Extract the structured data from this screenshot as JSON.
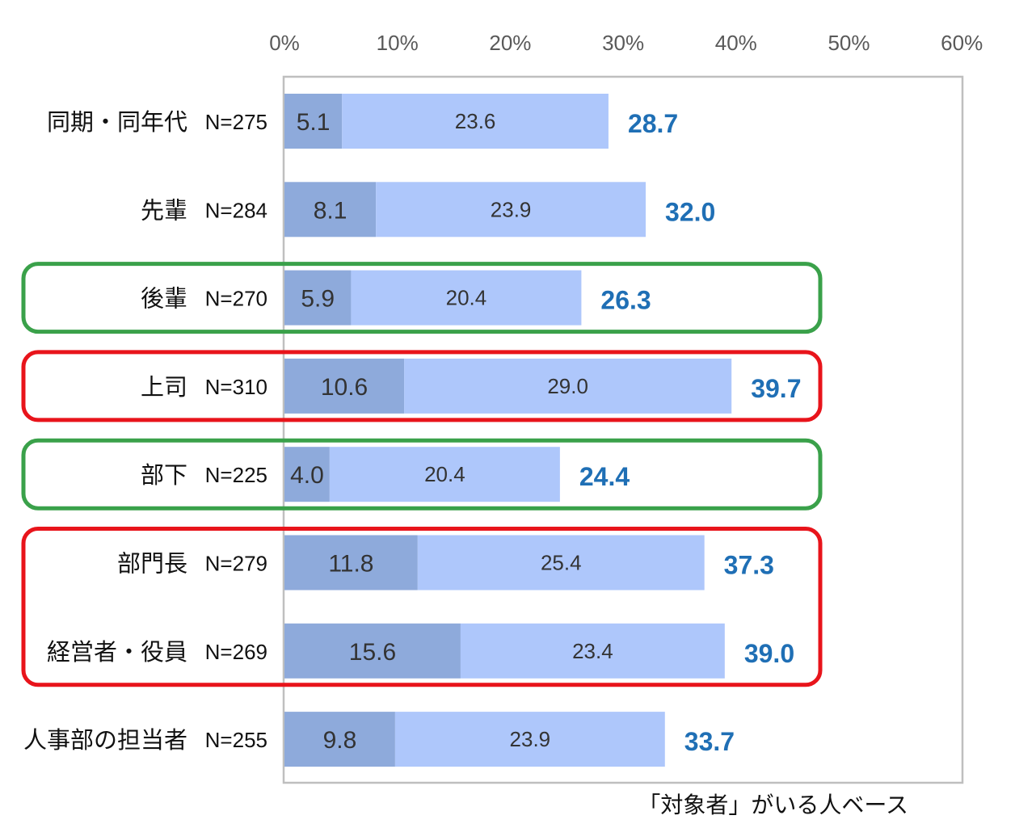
{
  "chart_data": {
    "type": "bar",
    "stacked": true,
    "orientation": "horizontal",
    "x_ticks": [
      "0%",
      "10%",
      "20%",
      "30%",
      "40%",
      "50%",
      "60%"
    ],
    "xlim": [
      0,
      60
    ],
    "categories": [
      {
        "label": "同期・同年代",
        "n": "N=275"
      },
      {
        "label": "先輩",
        "n": "N=284"
      },
      {
        "label": "後輩",
        "n": "N=270"
      },
      {
        "label": "上司",
        "n": "N=310"
      },
      {
        "label": "部下",
        "n": "N=225"
      },
      {
        "label": "部門長",
        "n": "N=279"
      },
      {
        "label": "経営者・役員",
        "n": "N=269"
      },
      {
        "label": "人事部の担当者",
        "n": "N=255"
      }
    ],
    "series": [
      {
        "name": "segment1",
        "values": [
          5.1,
          8.1,
          5.9,
          10.6,
          4.0,
          11.8,
          15.6,
          9.8
        ],
        "labels": [
          "5.1",
          "8.1",
          "5.9",
          "10.6",
          "4.0",
          "11.8",
          "15.6",
          "9.8"
        ]
      },
      {
        "name": "segment2",
        "values": [
          23.6,
          23.9,
          20.4,
          29.0,
          20.4,
          25.4,
          23.4,
          23.9
        ],
        "labels": [
          "23.6",
          "23.9",
          "20.4",
          "29.0",
          "20.4",
          "25.4",
          "23.4",
          "23.9"
        ]
      }
    ],
    "totals": [
      28.7,
      32.0,
      26.3,
      39.7,
      24.4,
      37.3,
      39.0,
      33.7
    ],
    "total_labels": [
      "28.7",
      "32.0",
      "26.3",
      "39.7",
      "24.4",
      "37.3",
      "39.0",
      "33.7"
    ],
    "highlights": [
      {
        "color": "green",
        "categories": [
          "後輩"
        ]
      },
      {
        "color": "red",
        "categories": [
          "上司"
        ]
      },
      {
        "color": "green",
        "categories": [
          "部下"
        ]
      },
      {
        "color": "red",
        "categories": [
          "部門長",
          "経営者・役員"
        ]
      }
    ],
    "note": "「対象者」がいる人ベース"
  },
  "colors": {
    "segment1": "#8eaadb",
    "segment2": "#aec7fb",
    "total_text": "#1f6fb5",
    "axis": "#bfbfbf",
    "highlight_green": "#3aa14a",
    "highlight_red": "#e8141b"
  }
}
